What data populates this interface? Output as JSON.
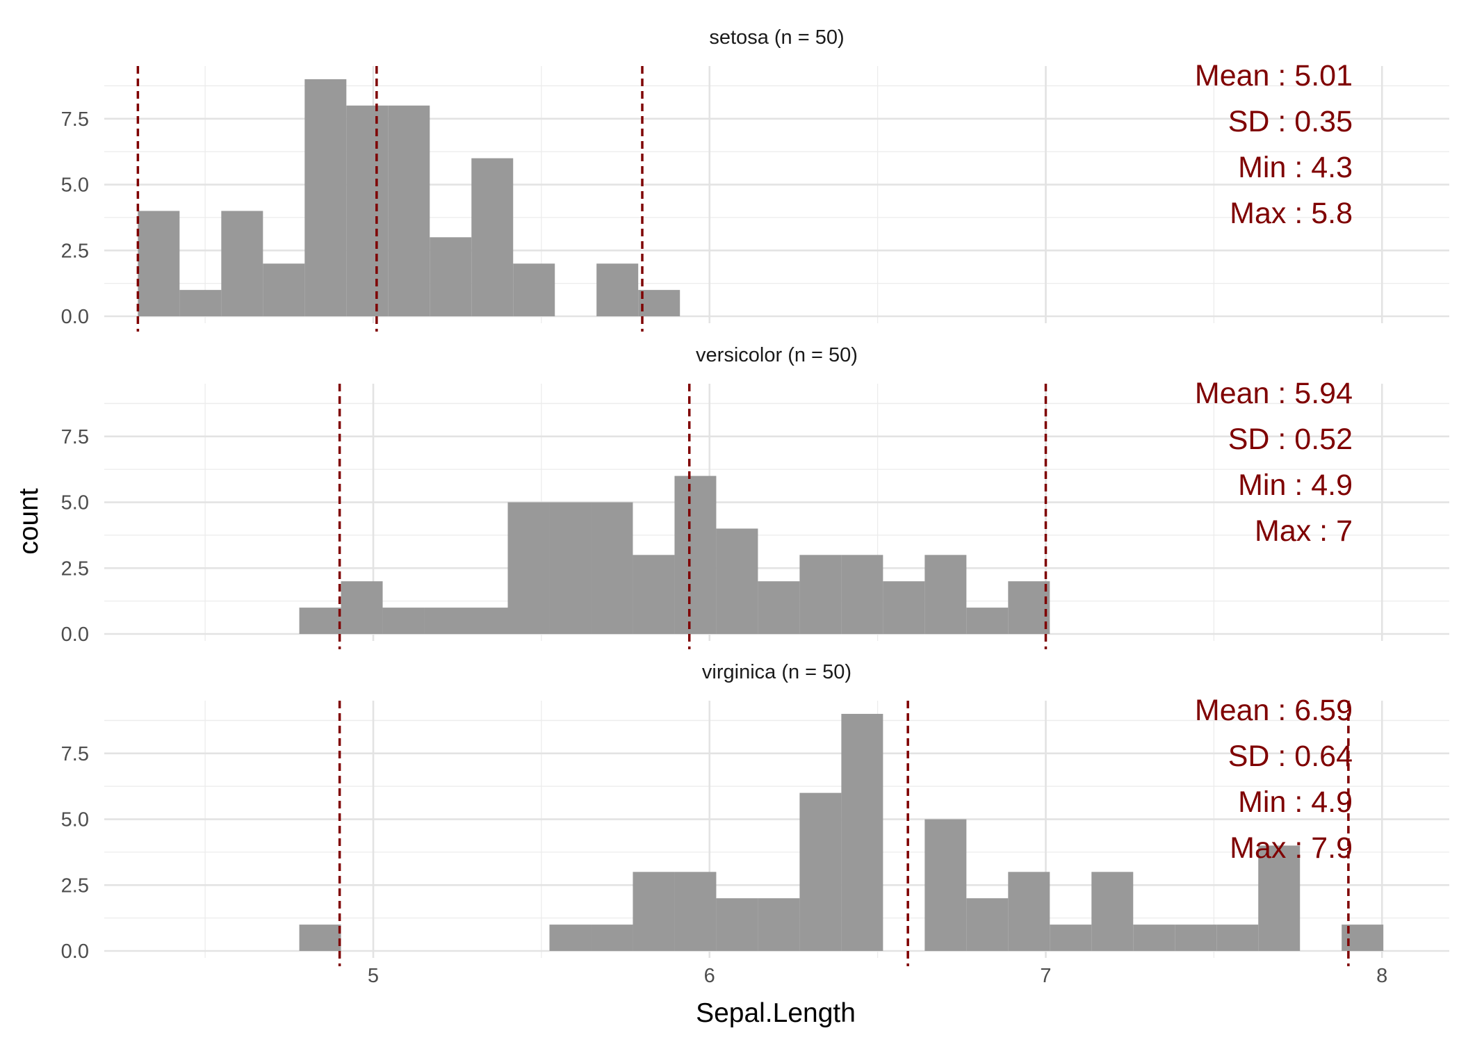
{
  "chart_data": {
    "type": "bar",
    "subtype": "faceted-histogram",
    "xlabel": "Sepal.Length",
    "ylabel": "count",
    "xlim": [
      4.2,
      8.2
    ],
    "ylim": [
      0,
      9.5
    ],
    "x_ticks": [
      5,
      6,
      7,
      8
    ],
    "y_ticks": [
      0,
      2.5,
      5,
      7.5
    ],
    "y_tick_labels": [
      "0.0",
      "2.5",
      "5.0",
      "7.5"
    ],
    "bin_width": 0.124,
    "bar_color": "#999999",
    "line_color": "#7f0000",
    "grid": true,
    "panels": [
      {
        "title": "setosa (n = 50)",
        "bins_start": 4.3,
        "counts": [
          4,
          1,
          4,
          2,
          9,
          8,
          8,
          3,
          6,
          2,
          0,
          2,
          1
        ],
        "vlines": [
          4.3,
          5.01,
          5.8
        ],
        "stats": [
          "Mean : 5.01",
          "SD : 0.35",
          "Min : 4.3",
          "Max : 5.8"
        ]
      },
      {
        "title": "versicolor (n = 50)",
        "bins_start": 4.78,
        "counts": [
          1,
          2,
          1,
          1,
          1,
          5,
          5,
          5,
          3,
          6,
          4,
          2,
          3,
          3,
          2,
          3,
          1,
          2
        ],
        "vlines": [
          4.9,
          5.94,
          7.0
        ],
        "stats": [
          "Mean : 5.94",
          "SD : 0.52",
          "Min : 4.9",
          "Max : 7"
        ]
      },
      {
        "title": "virginica (n = 50)",
        "bins_start": 4.78,
        "counts": [
          1,
          0,
          0,
          0,
          0,
          0,
          1,
          1,
          3,
          3,
          2,
          2,
          6,
          9,
          0,
          5,
          2,
          3,
          1,
          3,
          1,
          1,
          1,
          4,
          0,
          1
        ],
        "vlines": [
          4.9,
          6.59,
          7.9
        ],
        "stats": [
          "Mean : 6.59",
          "SD : 0.64",
          "Min : 4.9",
          "Max : 7.9"
        ]
      }
    ]
  }
}
